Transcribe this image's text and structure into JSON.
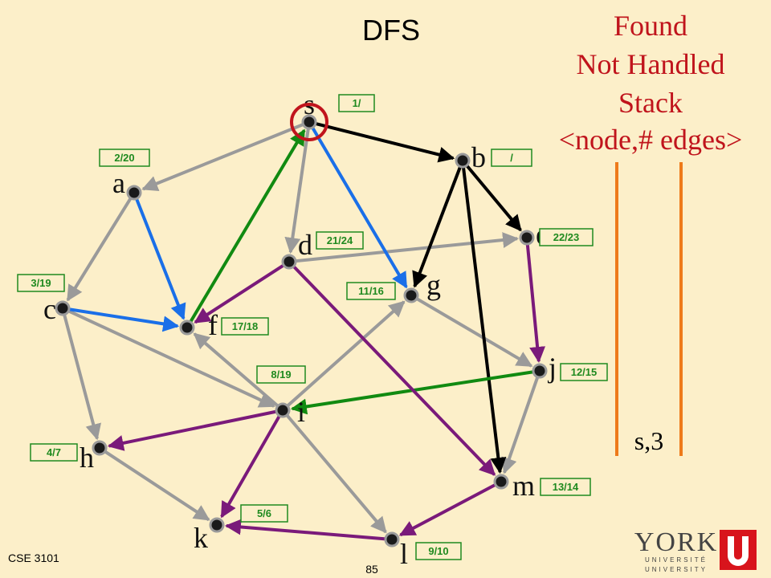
{
  "title": "DFS",
  "legend": {
    "found": "Found",
    "not_handled": "Not Handled",
    "stack": "Stack",
    "format": "<node,# edges>"
  },
  "nodes": [
    {
      "label": "s",
      "time": "1/"
    },
    {
      "label": "b",
      "time": "/"
    },
    {
      "label": "a",
      "time": "2/20"
    },
    {
      "label": "e",
      "time": "22/23"
    },
    {
      "label": "d",
      "time": "21/24"
    },
    {
      "label": "g",
      "time": "11/16"
    },
    {
      "label": "c",
      "time": "3/19"
    },
    {
      "label": "f",
      "time": "17/18"
    },
    {
      "label": "j",
      "time": "12/15"
    },
    {
      "label": "i",
      "time": "8/19"
    },
    {
      "label": "h",
      "time": "4/7"
    },
    {
      "label": "m",
      "time": "13/14"
    },
    {
      "label": "k",
      "time": "5/6"
    },
    {
      "label": "l",
      "time": "9/10"
    }
  ],
  "stack": [
    "s,3"
  ],
  "footer": {
    "course": "CSE 3101",
    "page": "85"
  },
  "logo": {
    "name": "YORK",
    "line1": "UNIVERSITÉ",
    "line2": "UNIVERSITY"
  }
}
